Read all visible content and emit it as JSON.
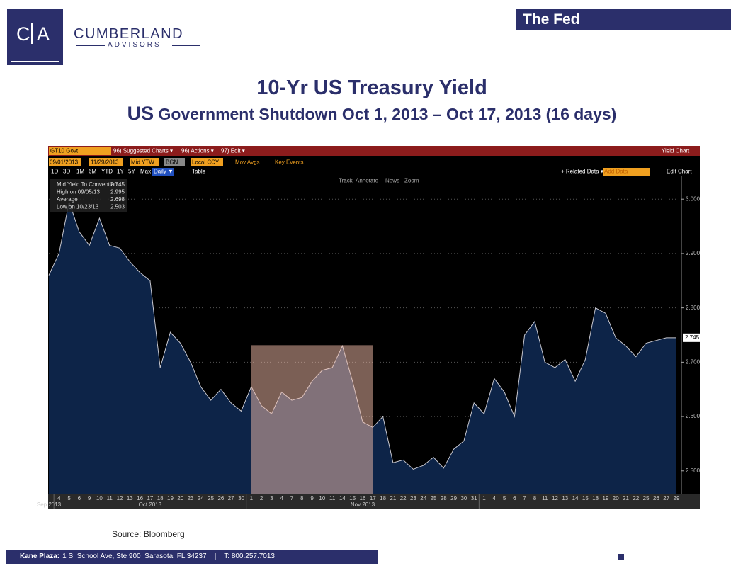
{
  "header": {
    "section": "The Fed"
  },
  "logo": {
    "letters": [
      "C",
      "A"
    ],
    "name": "CUMBERLAND",
    "sub": "ADVISORS"
  },
  "title": "10-Yr US Treasury Yield",
  "subtitle_lead": "US",
  "subtitle": "Government Shutdown Oct 1, 2013 – Oct 17, 2013 (16 days)",
  "toolbar": {
    "ticker": "GT10 Govt",
    "menu": [
      "96) Suggested Charts ▾",
      "96) Actions ▾",
      "97) Edit ▾"
    ],
    "chart_kind": "Yield Chart",
    "start_date": "09/01/2013",
    "end_date": "11/29/2013",
    "field": "Mid YTW",
    "source": "BGN",
    "currency": "Local CCY",
    "options": [
      "Mov Avgs",
      "Key Events"
    ],
    "periods": [
      "1D",
      "3D",
      "1M",
      "6M",
      "YTD",
      "1Y",
      "5Y",
      "Max"
    ],
    "frequency": "Daily ▼",
    "table": "Table",
    "related": "+ Related Data ▾",
    "add_data": "Add Data",
    "edit_chart": "Edit Chart",
    "tools": [
      "Track",
      "Annotate",
      "News",
      "Zoom"
    ]
  },
  "chart_data": {
    "type": "area",
    "categories": [
      null,
      "4",
      "5",
      "6",
      "9",
      "10",
      "11",
      "12",
      "13",
      "16",
      "17",
      "18",
      "19",
      "20",
      "23",
      "24",
      "25",
      "26",
      "27",
      "30",
      "1",
      "2",
      "3",
      "4",
      "7",
      "8",
      "9",
      "10",
      "11",
      "14",
      "15",
      "16",
      "17",
      "18",
      "21",
      "22",
      "23",
      "24",
      "25",
      "28",
      "29",
      "30",
      "31",
      "1",
      "4",
      "5",
      "6",
      "7",
      "8",
      "11",
      "12",
      "13",
      "14",
      "15",
      "18",
      "19",
      "20",
      "21",
      "22",
      "25",
      "26",
      "27",
      "29"
    ],
    "months": [
      "Sep 2013",
      "Oct 2013",
      "Nov 2013"
    ],
    "values": [
      2.86,
      2.9,
      2.995,
      2.94,
      2.915,
      2.965,
      2.915,
      2.91,
      2.885,
      2.865,
      2.85,
      2.69,
      2.755,
      2.735,
      2.7,
      2.655,
      2.63,
      2.65,
      2.625,
      2.61,
      2.655,
      2.62,
      2.605,
      2.645,
      2.63,
      2.635,
      2.665,
      2.685,
      2.69,
      2.73,
      2.665,
      2.59,
      2.58,
      2.6,
      2.515,
      2.52,
      2.503,
      2.51,
      2.525,
      2.505,
      2.54,
      2.555,
      2.625,
      2.605,
      2.67,
      2.645,
      2.6,
      2.75,
      2.775,
      2.7,
      2.69,
      2.705,
      2.665,
      2.705,
      2.8,
      2.79,
      2.745,
      2.73,
      2.71,
      2.735,
      2.74,
      2.745,
      2.745
    ],
    "color": "#0d2448",
    "line_color": "#c8c8d0",
    "ylim": [
      2.458,
      3.042
    ],
    "yticks": [
      {
        "value": 2.5,
        "label": "2.500"
      },
      {
        "value": 2.6,
        "label": "2.600"
      },
      {
        "value": 2.7,
        "label": "2.700"
      },
      {
        "value": 2.8,
        "label": "2.800"
      },
      {
        "value": 2.9,
        "label": "2.900"
      },
      {
        "value": 3,
        "label": "3.000"
      }
    ],
    "last_value_label": "2.745",
    "shaded_range": [
      20,
      32
    ],
    "legend": [
      {
        "label": "Mid Yield To Convention",
        "value": "2.745"
      },
      {
        "label": "High on 09/05/13",
        "value": "2.995"
      },
      {
        "label": "Average",
        "value": "2.698"
      },
      {
        "label": "Low on 10/23/13",
        "value": "2.503"
      }
    ],
    "grid": true
  },
  "source_note": "Source: Bloomberg",
  "footer": {
    "label": "Kane Plaza:",
    "text": "1 S. School Ave, Ste 900  Sarasota, FL 34237    |    T: 800.257.7013"
  }
}
